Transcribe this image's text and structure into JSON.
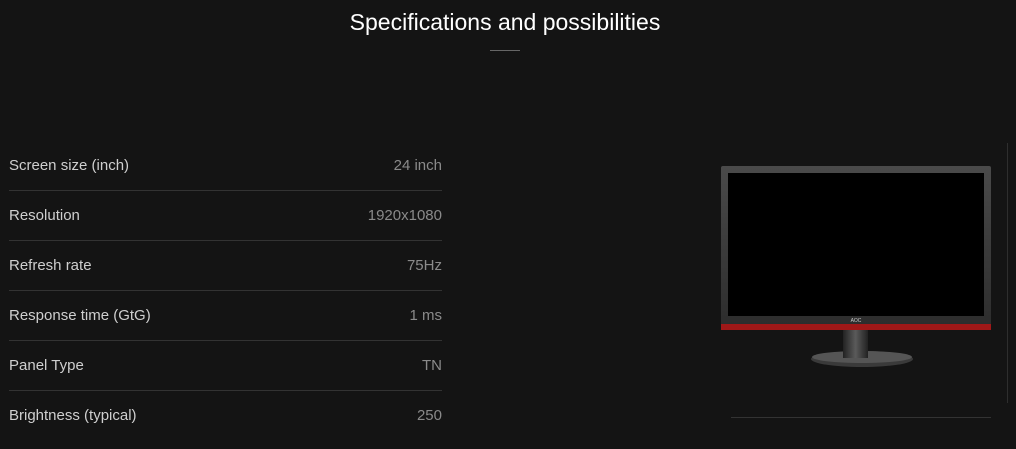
{
  "header": {
    "title": "Specifications and possibilities"
  },
  "specs": [
    {
      "label": "Screen size (inch)",
      "value": "24 inch"
    },
    {
      "label": "Resolution",
      "value": "1920x1080"
    },
    {
      "label": "Refresh rate",
      "value": "75Hz"
    },
    {
      "label": "Response time (GtG)",
      "value": "1 ms"
    },
    {
      "label": "Panel Type",
      "value": "TN"
    },
    {
      "label": "Brightness (typical)",
      "value": "250"
    }
  ],
  "product_image": {
    "logo_text": "AOC",
    "accent_color": "#a01818"
  }
}
